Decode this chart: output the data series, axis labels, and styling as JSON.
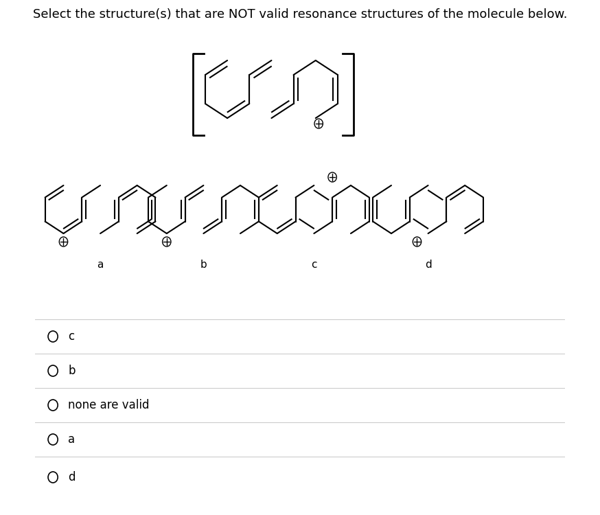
{
  "title": "Select the structure(s) that are NOT valid resonance structures of the molecule below.",
  "title_fontsize": 13,
  "bg_color": "#ffffff",
  "text_color": "#000000",
  "choices": [
    "c",
    "b",
    "none are valid",
    "a",
    "d"
  ],
  "choice_labels": [
    "a",
    "b",
    "c",
    "d"
  ],
  "ring_color": "#000000",
  "ring_lw": 1.5,
  "inner_lw": 1.5,
  "plus_size": 7
}
